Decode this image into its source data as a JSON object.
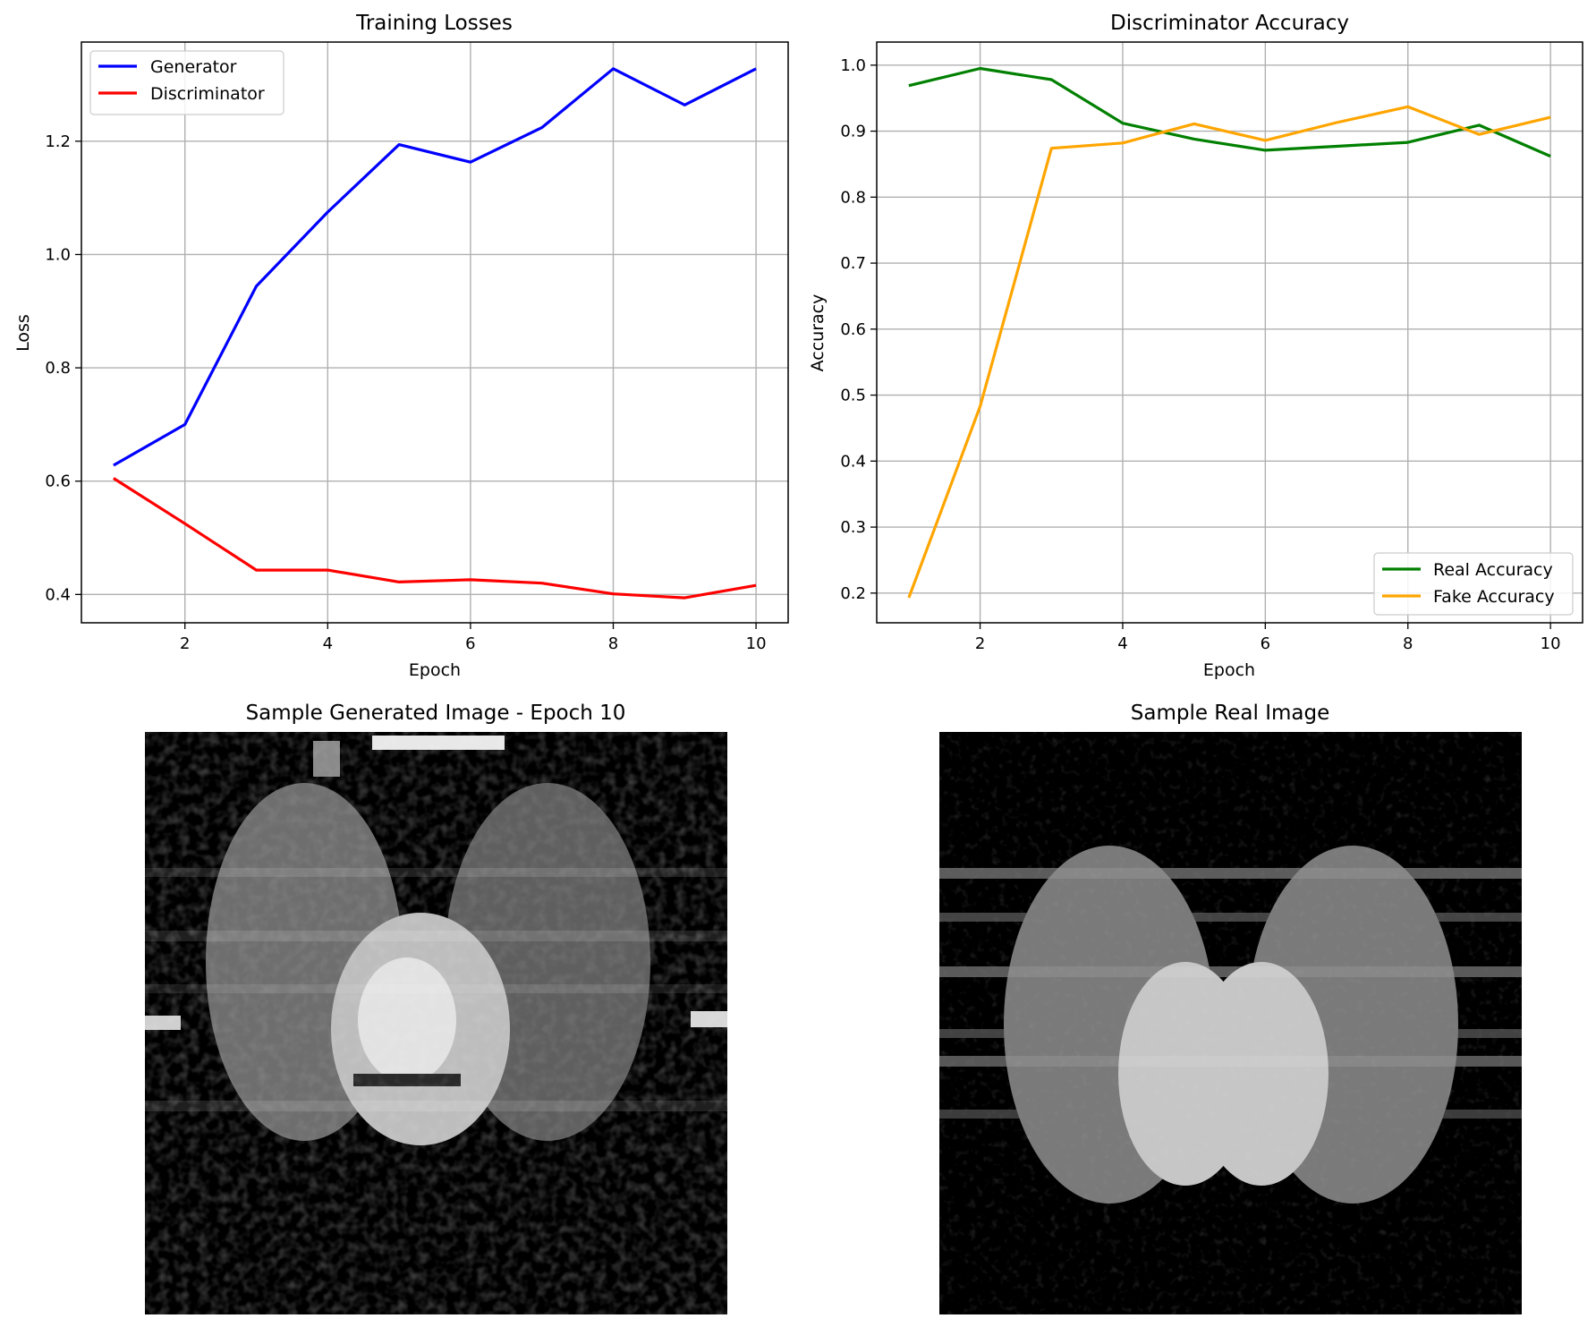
{
  "chart_data": [
    {
      "type": "line",
      "title": "Training Losses",
      "xlabel": "Epoch",
      "ylabel": "Loss",
      "x": [
        1,
        2,
        3,
        4,
        5,
        6,
        7,
        8,
        9,
        10
      ],
      "xlim": [
        0.55,
        10.45
      ],
      "ylim": [
        0.35,
        1.375
      ],
      "xticks": [
        2,
        4,
        6,
        8,
        10
      ],
      "yticks": [
        0.4,
        0.6,
        0.8,
        1.0,
        1.2
      ],
      "ytick_format": 1,
      "grid": true,
      "legend_position": "upper-left",
      "series": [
        {
          "name": "Generator",
          "color": "#0000ff",
          "values": [
            0.628,
            0.7,
            0.944,
            1.075,
            1.194,
            1.163,
            1.224,
            1.328,
            1.264,
            1.328
          ]
        },
        {
          "name": "Discriminator",
          "color": "#ff0000",
          "values": [
            0.605,
            0.525,
            0.443,
            0.443,
            0.422,
            0.426,
            0.42,
            0.401,
            0.394,
            0.416
          ]
        }
      ]
    },
    {
      "type": "line",
      "title": "Discriminator Accuracy",
      "xlabel": "Epoch",
      "ylabel": "Accuracy",
      "x": [
        1,
        2,
        3,
        4,
        5,
        6,
        7,
        8,
        9,
        10
      ],
      "xlim": [
        0.55,
        10.45
      ],
      "ylim": [
        0.155,
        1.035
      ],
      "xticks": [
        2,
        4,
        6,
        8,
        10
      ],
      "yticks": [
        0.2,
        0.3,
        0.4,
        0.5,
        0.6,
        0.7,
        0.8,
        0.9,
        1.0
      ],
      "ytick_format": 1,
      "grid": true,
      "legend_position": "lower-right",
      "series": [
        {
          "name": "Real Accuracy",
          "color": "#008000",
          "values": [
            0.969,
            0.995,
            0.978,
            0.912,
            0.888,
            0.871,
            0.877,
            0.883,
            0.909,
            0.862
          ]
        },
        {
          "name": "Fake Accuracy",
          "color": "#ffa500",
          "values": [
            0.193,
            0.483,
            0.874,
            0.882,
            0.911,
            0.886,
            0.913,
            0.937,
            0.895,
            0.921
          ]
        }
      ]
    }
  ],
  "images": {
    "generated_title": "Sample Generated Image - Epoch 10",
    "real_title": "Sample Real Image"
  }
}
